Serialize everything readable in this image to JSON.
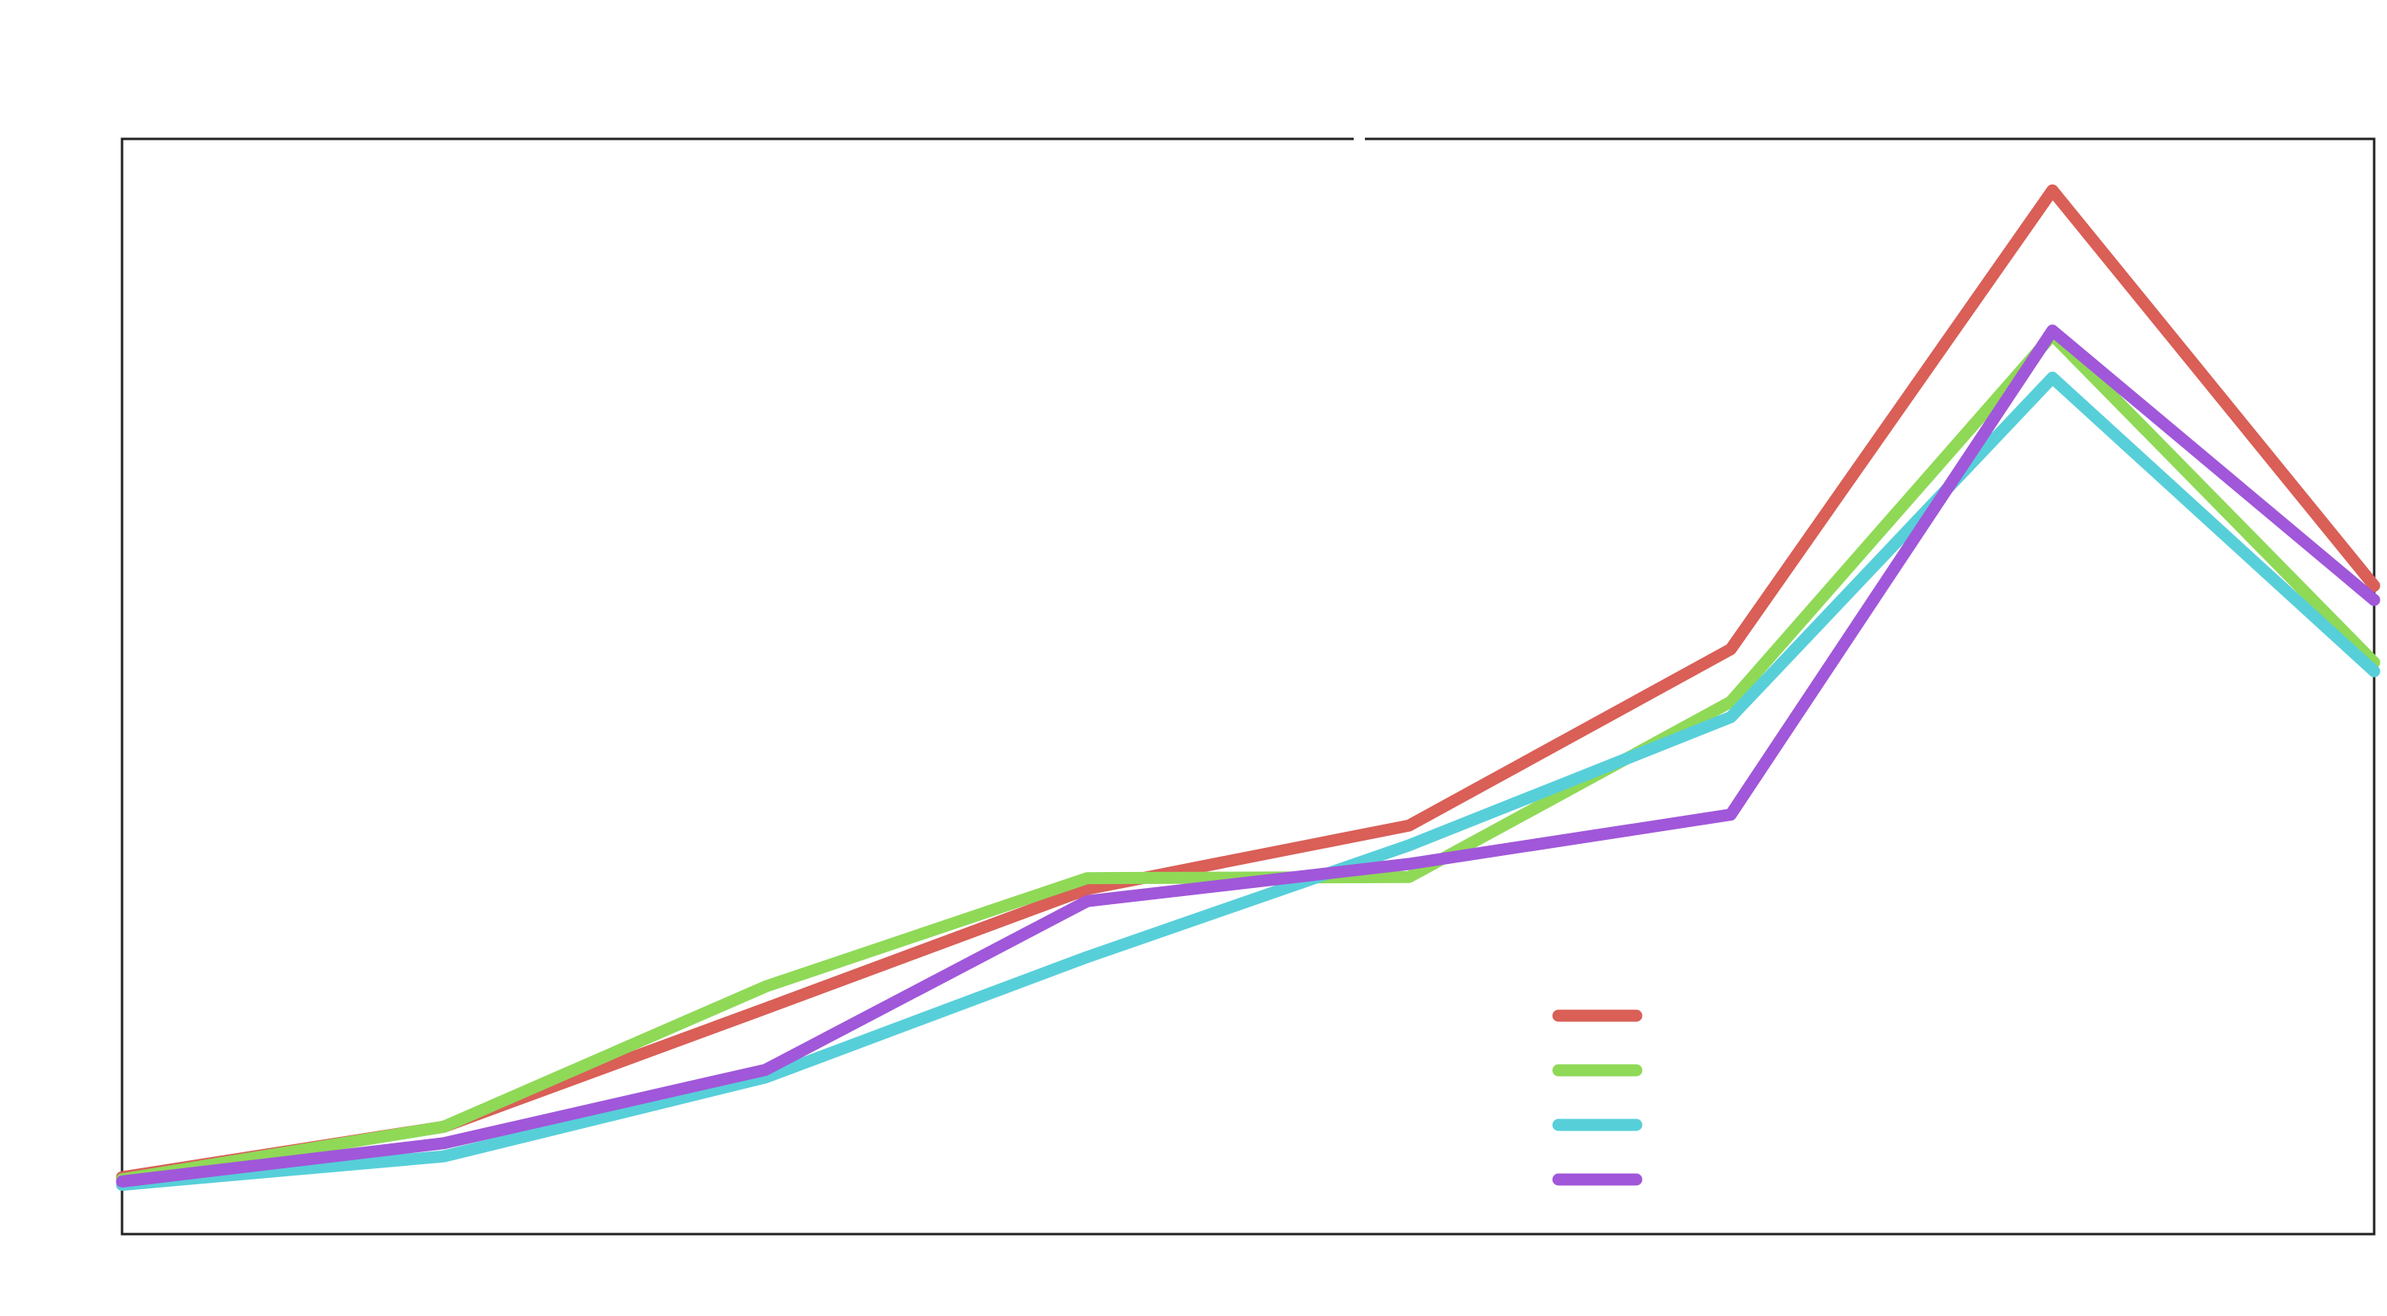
{
  "chart_data": {
    "type": "line",
    "title": "",
    "xlabel": "",
    "ylabel": "",
    "x": [
      1,
      2,
      3,
      4,
      5,
      6,
      7,
      8
    ],
    "xlim": [
      1,
      8
    ],
    "ylim": [
      0,
      100
    ],
    "grid": false,
    "legend_position": "lower-right",
    "series": [
      {
        "color": "#d95f57",
        "values": [
          5.2,
          9.8,
          20.6,
          31.5,
          37.3,
          53.4,
          95.3,
          59.2
        ]
      },
      {
        "color": "#8fd957",
        "values": [
          5.0,
          9.8,
          22.6,
          32.5,
          32.6,
          48.6,
          82.1,
          52.2
        ]
      },
      {
        "color": "#57cfd9",
        "values": [
          4.5,
          7.1,
          14.3,
          25.3,
          35.5,
          47.2,
          78.2,
          51.4
        ]
      },
      {
        "color": "#a057d9",
        "values": [
          4.8,
          8.3,
          15.0,
          30.4,
          33.8,
          38.3,
          82.5,
          57.9
        ]
      }
    ]
  }
}
